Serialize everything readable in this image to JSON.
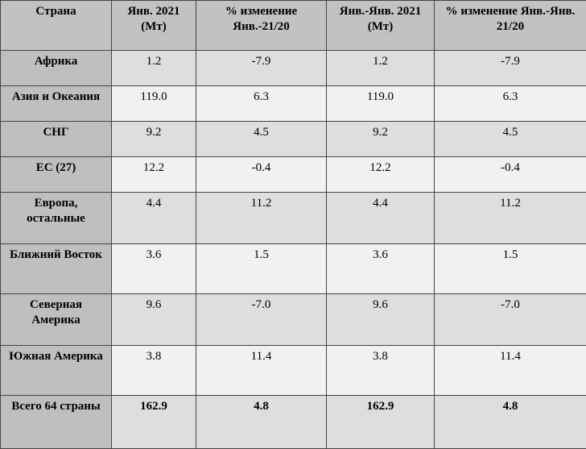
{
  "table": {
    "header": [
      "Страна",
      "Янв. 2021 (Мт)",
      "% изменение Янв.-21/20",
      "Янв.-Янв. 2021 (Мт)",
      "% изменение Янв.-Янв. 21/20"
    ],
    "rows": [
      [
        "Африка",
        "1.2",
        "-7.9",
        "1.2",
        "-7.9"
      ],
      [
        "Азия и Океания",
        "119.0",
        "6.3",
        "119.0",
        "6.3"
      ],
      [
        "СНГ",
        "9.2",
        "4.5",
        "9.2",
        "4.5"
      ],
      [
        "ЕС (27)",
        "12.2",
        "-0.4",
        "12.2",
        "-0.4"
      ],
      [
        "Европа, остальные",
        "4.4",
        "11.2",
        "4.4",
        "11.2"
      ],
      [
        "Ближний Восток",
        "3.6",
        "1.5",
        "3.6",
        "1.5"
      ],
      [
        "Северная Америка",
        "9.6",
        "-7.0",
        "9.6",
        "-7.0"
      ],
      [
        "Южная Америка",
        "3.8",
        "11.4",
        "3.8",
        "11.4"
      ],
      [
        "Всего 64 страны",
        "162.9",
        "4.8",
        "162.9",
        "4.8"
      ]
    ]
  }
}
